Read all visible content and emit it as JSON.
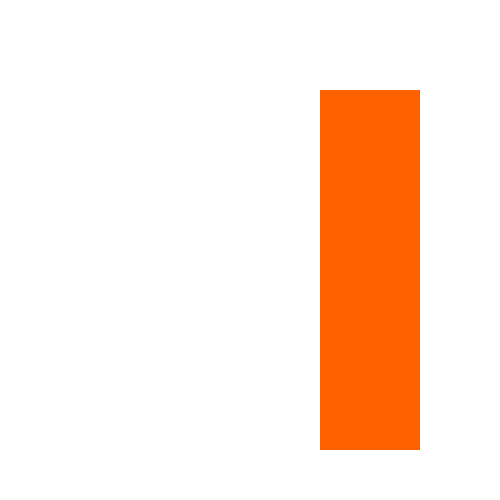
{
  "colors": {
    "background": "#ffffff",
    "bar": "#ff6000"
  }
}
